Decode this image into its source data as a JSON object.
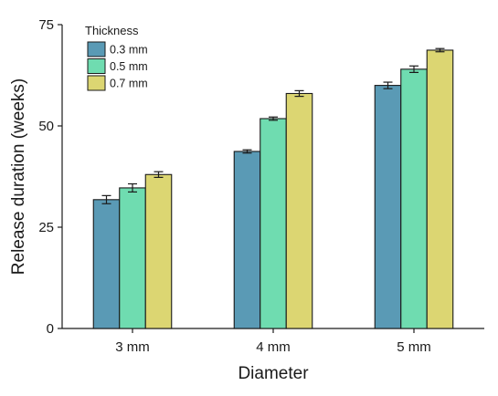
{
  "chart_data": {
    "type": "bar",
    "title": "",
    "xlabel": "Diameter",
    "ylabel": "Release duration (weeks)",
    "categories": [
      "3 mm",
      "4 mm",
      "5 mm"
    ],
    "ylim": [
      0,
      75
    ],
    "yticks": [
      0,
      25,
      50,
      75
    ],
    "grid": false,
    "legend": {
      "title": "Thickness",
      "position": "top-left"
    },
    "series": [
      {
        "name": "0.3 mm",
        "color": "#5a9ab5",
        "values": [
          31.8,
          43.7,
          60.0
        ],
        "errors": [
          1.0,
          0.4,
          0.8
        ]
      },
      {
        "name": "0.5 mm",
        "color": "#6fdcb0",
        "values": [
          34.7,
          51.8,
          64.0
        ],
        "errors": [
          1.0,
          0.4,
          0.8
        ]
      },
      {
        "name": "0.7 mm",
        "color": "#dcd672",
        "values": [
          38.0,
          58.0,
          68.7
        ],
        "errors": [
          0.7,
          0.7,
          0.4
        ]
      }
    ]
  }
}
